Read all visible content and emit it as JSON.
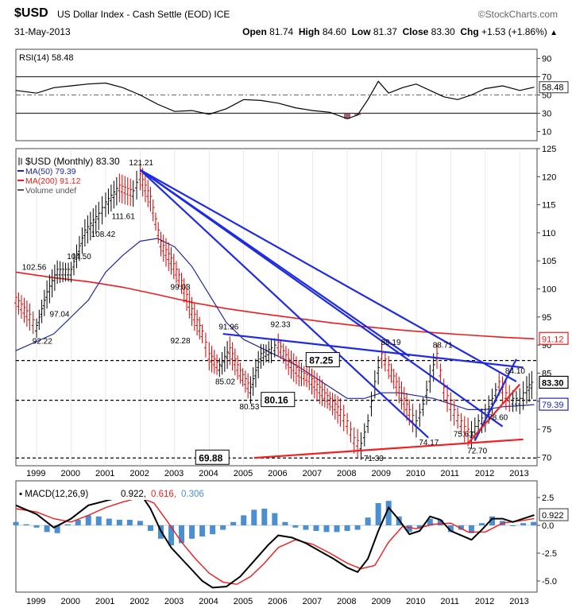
{
  "header": {
    "symbol": "$USD",
    "description": "US Dollar Index - Cash Settle (EOD)",
    "exchange": "ICE",
    "logo": "©StockCharts.com",
    "date": "31-May-2013",
    "open_label": "Open",
    "open": "81.74",
    "high_label": "High",
    "high": "84.60",
    "low_label": "Low",
    "low": "81.37",
    "close_label": "Close",
    "close": "83.30",
    "chg_label": "Chg",
    "chg": "+1.53 (+1.86%)",
    "collapse_icon": "triangle-up-icon"
  },
  "colors": {
    "price_up": "#000000",
    "price_down": "#d40000",
    "ma50": "#1f2a9e",
    "ma200": "#ee1c1c",
    "trend_blue": "#1f2be0",
    "trend_red": "#ee2222",
    "macd_line": "#000000",
    "signal_line": "#ee1c1c",
    "histogram": "#4a8fd0",
    "rsi_fill": "#8a3a4a"
  },
  "chart_data": [
    {
      "type": "line",
      "title": "RSI(14) 58.48",
      "legend": "RSI(14) 58.48",
      "current_value_label": "58.48",
      "y_ticks": [
        "90",
        "70",
        "50",
        "30",
        "10"
      ],
      "y_tick_values": [
        90,
        70,
        50,
        30,
        10
      ],
      "ylim": [
        0,
        100
      ],
      "reference_lines": [
        70,
        50,
        30
      ],
      "x": [
        1998.4,
        1999.0,
        1999.5,
        2000.0,
        2000.5,
        2001.0,
        2001.5,
        2002.0,
        2002.5,
        2003.0,
        2003.5,
        2004.0,
        2004.5,
        2005.0,
        2005.5,
        2006.0,
        2006.5,
        2007.0,
        2007.5,
        2008.0,
        2008.3,
        2008.6,
        2008.9,
        2009.2,
        2009.6,
        2010.0,
        2010.4,
        2010.8,
        2011.2,
        2011.6,
        2012.0,
        2012.5,
        2013.0,
        2013.42
      ],
      "values": [
        55,
        52,
        58,
        60,
        62,
        63,
        58,
        50,
        40,
        32,
        33,
        29,
        35,
        45,
        44,
        41,
        36,
        33,
        31,
        24,
        28,
        45,
        65,
        52,
        58,
        62,
        55,
        48,
        45,
        50,
        57,
        60,
        55,
        58.48
      ]
    },
    {
      "type": "line",
      "title": "$USD (Monthly) 83.30",
      "legend": [
        {
          "name": "$USD (Monthly) 83.30",
          "color": "#000000"
        },
        {
          "name": "MA(50) 79.39",
          "color": "#1f2a9e"
        },
        {
          "name": "MA(200) 91.12",
          "color": "#ee1c1c"
        },
        {
          "name": "Volume undef",
          "color": "#555555"
        }
      ],
      "x_ticks": [
        "1999",
        "2000",
        "2001",
        "2002",
        "2003",
        "2004",
        "2005",
        "2006",
        "2007",
        "2008",
        "2009",
        "2010",
        "2011",
        "2012",
        "2013"
      ],
      "xlim": [
        1998.4,
        2013.5
      ],
      "ylim": [
        68.5,
        125
      ],
      "y_ticks": [
        "125",
        "120",
        "115",
        "110",
        "105",
        "100",
        "95",
        "90",
        "85",
        "80",
        "75",
        "70"
      ],
      "y_tick_values": [
        125,
        120,
        115,
        110,
        105,
        100,
        95,
        90,
        85,
        80,
        75,
        70
      ],
      "price_series": {
        "name": "$USD",
        "x": [
          1998.4,
          1998.8,
          1999.0,
          1999.3,
          1999.6,
          2000.0,
          2000.4,
          2000.8,
          2001.0,
          2001.4,
          2001.8,
          2002.0,
          2002.3,
          2002.6,
          2002.9,
          2003.2,
          2003.5,
          2003.8,
          2004.0,
          2004.3,
          2004.6,
          2004.9,
          2005.2,
          2005.5,
          2005.8,
          2006.0,
          2006.3,
          2006.6,
          2006.9,
          2007.2,
          2007.5,
          2007.8,
          2008.0,
          2008.2,
          2008.4,
          2008.6,
          2008.8,
          2009.0,
          2009.2,
          2009.5,
          2009.8,
          2010.0,
          2010.2,
          2010.4,
          2010.6,
          2010.8,
          2011.0,
          2011.2,
          2011.4,
          2011.6,
          2011.8,
          2012.0,
          2012.2,
          2012.4,
          2012.6,
          2012.8,
          2013.0,
          2013.2,
          2013.42
        ],
        "values": [
          98,
          95,
          93,
          99,
          103,
          103,
          110,
          113,
          115,
          118,
          117,
          120,
          116,
          108,
          105,
          101,
          96,
          92,
          88,
          86,
          89,
          85,
          82,
          88,
          89,
          90,
          87,
          85,
          84,
          82,
          80,
          78,
          76,
          73,
          72,
          76,
          83,
          88,
          86,
          82,
          78,
          76,
          79,
          84,
          88,
          82,
          79,
          77,
          75,
          74,
          76,
          77,
          80,
          83,
          81,
          80,
          80,
          82,
          83.3
        ]
      },
      "ma50": {
        "name": "MA(50) 79.39",
        "current_value_label": "79.39",
        "x": [
          1998.4,
          1999.5,
          2000.5,
          2001.0,
          2001.5,
          2002.0,
          2002.5,
          2003.0,
          2003.5,
          2004.0,
          2004.5,
          2005.0,
          2005.5,
          2006.0,
          2006.5,
          2007.0,
          2007.5,
          2008.0,
          2008.5,
          2009.0,
          2009.5,
          2010.0,
          2010.5,
          2011.0,
          2011.5,
          2012.0,
          2012.5,
          2013.0,
          2013.42
        ],
        "values": [
          89,
          92,
          98,
          103,
          106,
          108.5,
          109,
          107.5,
          104,
          99,
          94,
          91,
          89.5,
          88,
          86.5,
          84.5,
          82.5,
          80.5,
          80.5,
          81.5,
          81.5,
          81,
          80.5,
          79.5,
          78.5,
          78.5,
          79,
          79.2,
          79.39
        ]
      },
      "ma200": {
        "name": "MA(200) 91.12",
        "current_value_label": "91.12",
        "x": [
          1998.4,
          1999.5,
          2000.5,
          2001.5,
          2002.5,
          2003.5,
          2004.5,
          2005.5,
          2006.5,
          2007.5,
          2008.5,
          2009.5,
          2010.5,
          2011.5,
          2012.5,
          2013.42
        ],
        "values": [
          103,
          102,
          101.3,
          100.3,
          99,
          97.6,
          96.5,
          95.6,
          94.8,
          94,
          93.3,
          92.7,
          92.2,
          91.8,
          91.4,
          91.12
        ]
      },
      "horizontal_levels": [
        {
          "value": 87.25,
          "label": "87.25"
        },
        {
          "value": 80.16,
          "label": "80.16"
        },
        {
          "value": 69.88,
          "label": "69.88"
        }
      ],
      "current_value_label": "83.30",
      "annotations": [
        {
          "label": "121.21",
          "x": 2002.0,
          "y": 121.21
        },
        {
          "label": "111.61",
          "x": 2001.5,
          "y": 111.61
        },
        {
          "label": "108.42",
          "x": 2000.9,
          "y": 108.42
        },
        {
          "label": "104.50",
          "x": 2000.2,
          "y": 104.5
        },
        {
          "label": "102.56",
          "x": 1998.9,
          "y": 102.56
        },
        {
          "label": "97.04",
          "x": 1999.7,
          "y": 97.04
        },
        {
          "label": "92.22",
          "x": 1999.2,
          "y": 92.22
        },
        {
          "label": "99.03",
          "x": 2003.2,
          "y": 99.03
        },
        {
          "label": "92.28",
          "x": 2003.2,
          "y": 92.28
        },
        {
          "label": "91.96",
          "x": 2004.6,
          "y": 91.96
        },
        {
          "label": "92.33",
          "x": 2006.1,
          "y": 92.33
        },
        {
          "label": "85.02",
          "x": 2004.5,
          "y": 85.02
        },
        {
          "label": "80.53",
          "x": 2005.2,
          "y": 80.53
        },
        {
          "label": "89.19",
          "x": 2009.3,
          "y": 89.19
        },
        {
          "label": "88.71",
          "x": 2010.8,
          "y": 88.71
        },
        {
          "label": "84.10",
          "x": 2012.9,
          "y": 84.1
        },
        {
          "label": "78.60",
          "x": 2012.4,
          "y": 78.6
        },
        {
          "label": "75.63",
          "x": 2011.4,
          "y": 75.63
        },
        {
          "label": "74.17",
          "x": 2010.4,
          "y": 74.17
        },
        {
          "label": "72.70",
          "x": 2011.8,
          "y": 72.7
        },
        {
          "label": "71.33",
          "x": 2008.8,
          "y": 71.33
        }
      ],
      "trendlines": [
        {
          "color": "#1f2be0",
          "from": [
            2002.0,
            121.21
          ],
          "to": [
            2010.35,
            73.5
          ]
        },
        {
          "color": "#1f2be0",
          "from": [
            2002.0,
            121.21
          ],
          "to": [
            2012.5,
            75.5
          ]
        },
        {
          "color": "#1f2be0",
          "from": [
            2002.0,
            121.21
          ],
          "to": [
            2012.9,
            83.5
          ]
        },
        {
          "color": "#1f2be0",
          "from": [
            2002.0,
            121.21
          ],
          "to": [
            2009.8,
            88.0
          ]
        },
        {
          "color": "#1f2be0",
          "from": [
            2004.4,
            92.0
          ],
          "to": [
            2013.1,
            86.0
          ]
        },
        {
          "color": "#1f2be0",
          "from": [
            2011.7,
            73.0
          ],
          "to": [
            2012.9,
            87.5
          ]
        },
        {
          "color": "#ee2222",
          "from": [
            2005.3,
            69.9
          ],
          "to": [
            2013.1,
            73.2
          ]
        },
        {
          "color": "#ee2222",
          "from": [
            2011.5,
            72.5
          ],
          "to": [
            2013.0,
            83.0
          ]
        }
      ]
    },
    {
      "type": "line",
      "title": "MACD(12,26,9) 0.922, 0.616, 0.306",
      "legend": [
        {
          "name": "MACD(12,26,9)",
          "color": "#000000"
        },
        {
          "name": "0.922",
          "color": "#000000"
        },
        {
          "name": "0.616",
          "color": "#ee1c1c"
        },
        {
          "name": "0.306",
          "color": "#4a8fd0"
        }
      ],
      "current_value_label": "0.922",
      "y_ticks": [
        "2.5",
        "0.0",
        "-2.5",
        "-5.0"
      ],
      "y_tick_values": [
        2.5,
        0,
        -2.5,
        -5
      ],
      "ylim": [
        -6,
        4
      ],
      "x_ticks": [
        "1999",
        "2000",
        "2001",
        "2002",
        "2003",
        "2004",
        "2005",
        "2006",
        "2007",
        "2008",
        "2009",
        "2010",
        "2011",
        "2012",
        "2013"
      ],
      "series": [
        {
          "name": "MACD",
          "x": [
            1998.4,
            1999.0,
            1999.5,
            2000.0,
            2000.5,
            2001.0,
            2001.5,
            2002.0,
            2002.3,
            2002.6,
            2002.9,
            2003.2,
            2003.5,
            2003.8,
            2004.1,
            2004.5,
            2004.9,
            2005.3,
            2005.7,
            2006.0,
            2006.4,
            2006.8,
            2007.2,
            2007.6,
            2008.0,
            2008.3,
            2008.6,
            2008.9,
            2009.2,
            2009.5,
            2009.8,
            2010.1,
            2010.4,
            2010.7,
            2011.0,
            2011.3,
            2011.6,
            2011.9,
            2012.2,
            2012.5,
            2012.8,
            2013.1,
            2013.42
          ],
          "values": [
            1.8,
            1.0,
            -0.2,
            0.6,
            1.8,
            2.2,
            2.6,
            2.9,
            1.5,
            -0.5,
            -2.0,
            -3.0,
            -4.0,
            -5.0,
            -5.6,
            -5.5,
            -4.6,
            -3.2,
            -1.8,
            -0.9,
            -1.1,
            -1.6,
            -2.3,
            -3.0,
            -3.8,
            -4.2,
            -3.0,
            -0.5,
            1.6,
            0.5,
            -0.8,
            -0.5,
            0.8,
            0.5,
            -0.5,
            -0.9,
            -1.3,
            -0.4,
            0.6,
            0.6,
            0.3,
            0.6,
            0.922
          ]
        },
        {
          "name": "Signal",
          "x": [
            1998.4,
            1999.0,
            1999.5,
            2000.0,
            2000.5,
            2001.0,
            2001.5,
            2002.0,
            2002.4,
            2002.8,
            2003.2,
            2003.6,
            2004.0,
            2004.4,
            2004.8,
            2005.2,
            2005.6,
            2006.0,
            2006.5,
            2007.0,
            2007.5,
            2008.0,
            2008.4,
            2008.8,
            2009.2,
            2009.6,
            2010.0,
            2010.5,
            2011.0,
            2011.5,
            2012.0,
            2012.5,
            2013.0,
            2013.42
          ],
          "values": [
            1.5,
            1.2,
            0.6,
            0.3,
            0.9,
            1.6,
            2.1,
            2.5,
            2.0,
            0.3,
            -1.5,
            -3.0,
            -4.3,
            -5.1,
            -5.3,
            -4.6,
            -3.4,
            -2.0,
            -1.3,
            -1.7,
            -2.5,
            -3.4,
            -3.9,
            -3.6,
            -1.5,
            -0.1,
            -0.3,
            0.1,
            0.2,
            -0.6,
            -0.6,
            0.2,
            0.4,
            0.616
          ]
        }
      ],
      "histogram": {
        "name": "Histogram",
        "x": [
          1998.4,
          1998.7,
          1999.0,
          1999.3,
          1999.6,
          1999.9,
          2000.2,
          2000.5,
          2000.8,
          2001.1,
          2001.4,
          2001.7,
          2002.0,
          2002.3,
          2002.6,
          2002.9,
          2003.2,
          2003.5,
          2003.8,
          2004.1,
          2004.4,
          2004.7,
          2005.0,
          2005.3,
          2005.6,
          2005.9,
          2006.2,
          2006.5,
          2006.8,
          2007.1,
          2007.4,
          2007.7,
          2008.0,
          2008.3,
          2008.6,
          2008.9,
          2009.2,
          2009.5,
          2009.8,
          2010.1,
          2010.4,
          2010.7,
          2011.0,
          2011.3,
          2011.6,
          2011.9,
          2012.2,
          2012.5,
          2012.8,
          2013.1,
          2013.4
        ],
        "values": [
          0.3,
          0.1,
          -0.2,
          -0.6,
          -0.7,
          0.1,
          0.5,
          0.9,
          0.8,
          0.6,
          0.5,
          0.5,
          0.4,
          -0.5,
          -1.2,
          -1.8,
          -1.6,
          -1.2,
          -1.0,
          -0.8,
          -0.4,
          0.3,
          0.9,
          1.4,
          1.5,
          1.1,
          0.3,
          -0.2,
          -0.4,
          -0.5,
          -0.6,
          -0.6,
          -0.5,
          -0.4,
          0.7,
          2.0,
          2.2,
          0.8,
          -0.6,
          -0.3,
          0.6,
          0.5,
          -0.6,
          -0.4,
          -0.7,
          0.2,
          0.8,
          0.4,
          0.0,
          0.2,
          0.306
        ]
      }
    }
  ]
}
